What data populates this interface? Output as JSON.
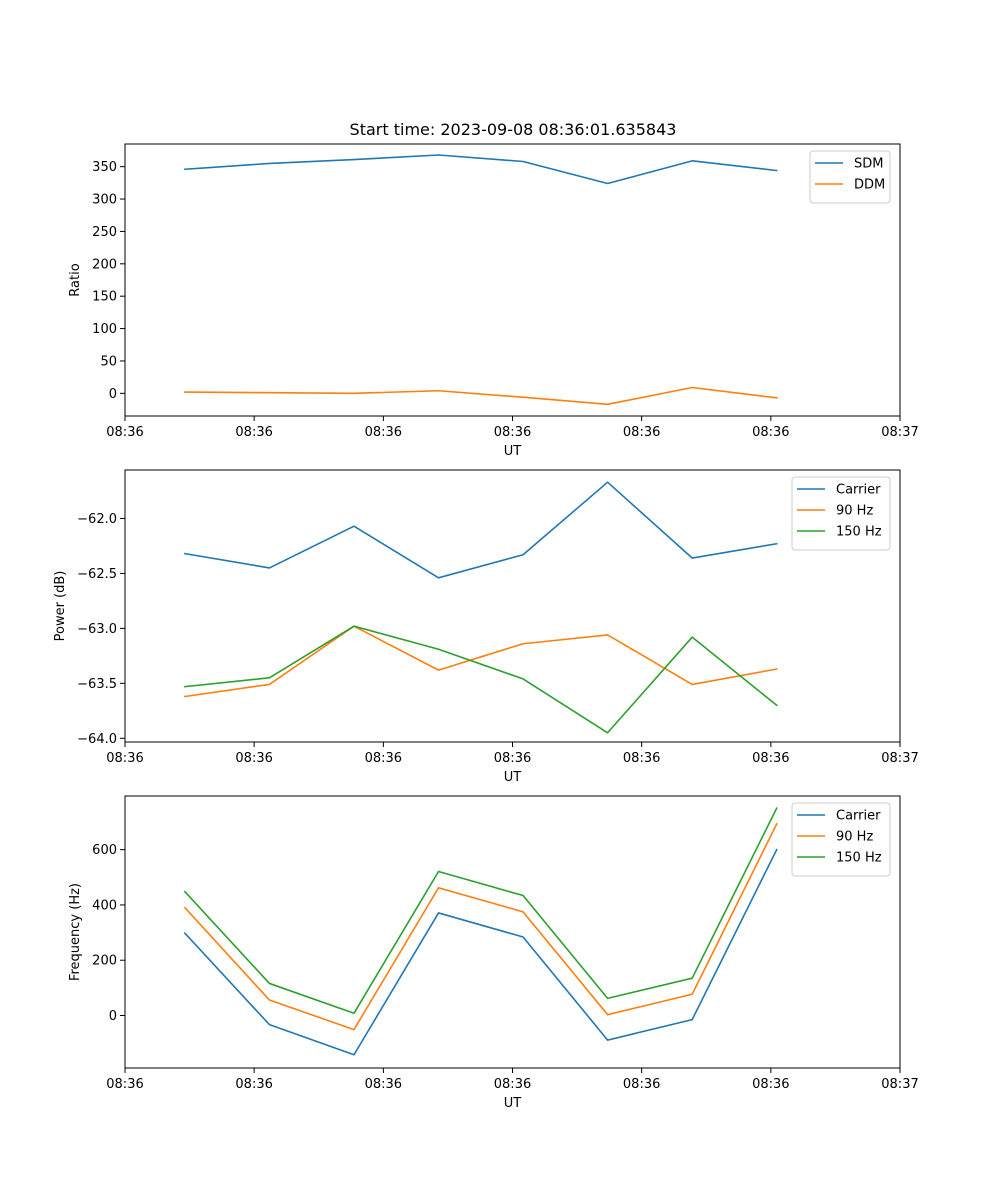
{
  "figure_title": "Start time: 2023-09-08 08:36:01.635843",
  "colors": {
    "blue": "#1f77b4",
    "orange": "#ff7f0e",
    "green": "#2ca02c"
  },
  "chart_data": [
    {
      "type": "line",
      "title": "Start time: 2023-09-08 08:36:01.635843",
      "xlabel": "UT",
      "ylabel": "Ratio",
      "x": [
        0.85,
        2.05,
        3.25,
        4.45,
        5.65,
        6.85,
        8.05,
        9.25
      ],
      "xlim": [
        0,
        11
      ],
      "x_tick_positions": [
        0,
        1.833,
        3.667,
        5.5,
        7.333,
        9.167,
        11
      ],
      "x_tick_labels": [
        "08:36",
        "08:36",
        "08:36",
        "08:36",
        "08:36",
        "08:36",
        "08:37"
      ],
      "ylim": [
        -35,
        385
      ],
      "y_ticks": [
        0,
        50,
        100,
        150,
        200,
        250,
        300,
        350
      ],
      "y_tick_labels": [
        "0",
        "50",
        "100",
        "150",
        "200",
        "250",
        "300",
        "350"
      ],
      "legend": "top-right",
      "series": [
        {
          "name": "SDM",
          "color": "#1f77b4",
          "values": [
            346,
            355,
            361,
            368,
            358,
            324,
            359,
            344
          ]
        },
        {
          "name": "DDM",
          "color": "#ff7f0e",
          "values": [
            2,
            1,
            0,
            4,
            -6,
            -17,
            9,
            -7
          ]
        }
      ]
    },
    {
      "type": "line",
      "xlabel": "UT",
      "ylabel": "Power (dB)",
      "x": [
        0.85,
        2.05,
        3.25,
        4.45,
        5.65,
        6.85,
        8.05,
        9.25
      ],
      "xlim": [
        0,
        11
      ],
      "x_tick_positions": [
        0,
        1.833,
        3.667,
        5.5,
        7.333,
        9.167,
        11
      ],
      "x_tick_labels": [
        "08:36",
        "08:36",
        "08:36",
        "08:36",
        "08:36",
        "08:36",
        "08:37"
      ],
      "ylim": [
        -64.034,
        -61.559
      ],
      "y_ticks": [
        -64.0,
        -63.5,
        -63.0,
        -62.5,
        -62.0
      ],
      "y_tick_labels": [
        "−64.0",
        "−63.5",
        "−63.0",
        "−62.5",
        "−62.0"
      ],
      "legend": "top-right",
      "series": [
        {
          "name": "Carrier",
          "color": "#1f77b4",
          "values": [
            -62.32,
            -62.45,
            -62.07,
            -62.54,
            -62.33,
            -61.67,
            -62.36,
            -62.23
          ]
        },
        {
          "name": "90 Hz",
          "color": "#ff7f0e",
          "values": [
            -63.62,
            -63.51,
            -62.98,
            -63.38,
            -63.14,
            -63.06,
            -63.51,
            -63.37
          ]
        },
        {
          "name": "150 Hz",
          "color": "#2ca02c",
          "values": [
            -63.53,
            -63.45,
            -62.98,
            -63.19,
            -63.46,
            -63.95,
            -63.08,
            -63.7
          ]
        }
      ]
    },
    {
      "type": "line",
      "xlabel": "UT",
      "ylabel": "Frequency (Hz)",
      "x": [
        0.85,
        2.05,
        3.25,
        4.45,
        5.65,
        6.85,
        8.05,
        9.25
      ],
      "xlim": [
        0,
        11
      ],
      "x_tick_positions": [
        0,
        1.833,
        3.667,
        5.5,
        7.333,
        9.167,
        11
      ],
      "x_tick_labels": [
        "08:36",
        "08:36",
        "08:36",
        "08:36",
        "08:36",
        "08:36",
        "08:37"
      ],
      "ylim": [
        -189.9,
        794.1
      ],
      "y_ticks": [
        0,
        200,
        400,
        600
      ],
      "y_tick_labels": [
        "0",
        "200",
        "400",
        "600"
      ],
      "legend": "top-right",
      "series": [
        {
          "name": "Carrier",
          "color": "#1f77b4",
          "values": [
            298,
            -33,
            -142,
            371,
            284,
            -89,
            -15,
            600
          ]
        },
        {
          "name": "90 Hz",
          "color": "#ff7f0e",
          "values": [
            390,
            56,
            -51,
            462,
            375,
            3,
            77,
            693
          ]
        },
        {
          "name": "150 Hz",
          "color": "#2ca02c",
          "values": [
            448,
            116,
            8,
            521,
            434,
            62,
            135,
            750
          ]
        }
      ]
    }
  ]
}
